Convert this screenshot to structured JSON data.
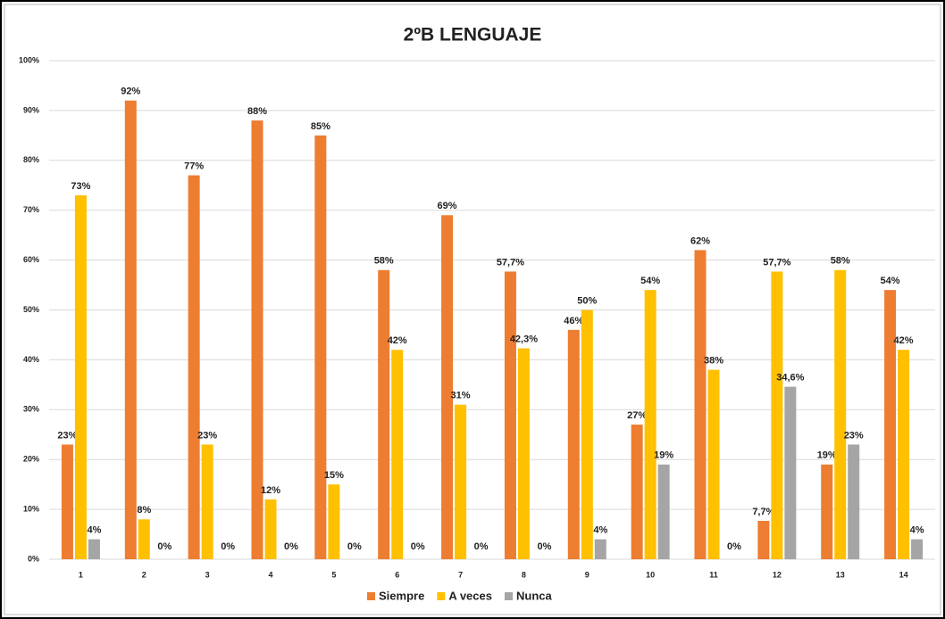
{
  "chart_data": {
    "type": "bar",
    "title": "2ºB LENGUAJE",
    "categories": [
      "1",
      "2",
      "3",
      "4",
      "5",
      "6",
      "7",
      "8",
      "9",
      "10",
      "11",
      "12",
      "13",
      "14"
    ],
    "series": [
      {
        "name": "Siempre",
        "color": "#ed7d31",
        "values": [
          23,
          92,
          77,
          88,
          85,
          58,
          69,
          57.7,
          46,
          27,
          62,
          7.7,
          19,
          54
        ],
        "value_labels": [
          "23%",
          "92%",
          "77%",
          "88%",
          "85%",
          "58%",
          "69%",
          "57,7%",
          "46%",
          "27%",
          "62%",
          "7,7%",
          "19%",
          "54%"
        ]
      },
      {
        "name": "A veces",
        "color": "#ffc000",
        "values": [
          73,
          8,
          23,
          12,
          15,
          42,
          31,
          42.3,
          50,
          54,
          38,
          57.7,
          58,
          42
        ],
        "value_labels": [
          "73%",
          "8%",
          "23%",
          "12%",
          "15%",
          "42%",
          "31%",
          "42,3%",
          "50%",
          "54%",
          "38%",
          "57,7%",
          "58%",
          "42%"
        ]
      },
      {
        "name": "Nunca",
        "color": "#a5a5a5",
        "values": [
          4,
          0,
          0,
          0,
          0,
          0,
          0,
          0,
          4,
          19,
          0,
          34.6,
          23,
          4
        ],
        "value_labels": [
          "4%",
          "0%",
          "0%",
          "0%",
          "0%",
          "0%",
          "0%",
          "0%",
          "4%",
          "19%",
          "0%",
          "34,6%",
          "23%",
          "4%"
        ]
      }
    ],
    "ylim": [
      0,
      100
    ],
    "yticks": [
      {
        "value": 0,
        "label": "0%"
      },
      {
        "value": 10,
        "label": "10%"
      },
      {
        "value": 20,
        "label": "20%"
      },
      {
        "value": 30,
        "label": "30%"
      },
      {
        "value": 40,
        "label": "40%"
      },
      {
        "value": 50,
        "label": "50%"
      },
      {
        "value": 60,
        "label": "60%"
      },
      {
        "value": 70,
        "label": "70%"
      },
      {
        "value": 80,
        "label": "80%"
      },
      {
        "value": 90,
        "label": "90%"
      },
      {
        "value": 100,
        "label": "100%"
      }
    ],
    "grid": true,
    "legend": "bottom"
  }
}
